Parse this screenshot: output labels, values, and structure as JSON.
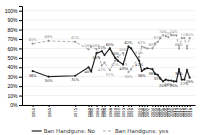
{
  "chart_data": {
    "type": "line",
    "title": "",
    "x": [
      1959,
      1965,
      1975,
      1980,
      1981,
      1983,
      1985,
      1986,
      1988,
      1990,
      1991,
      1993,
      1995,
      1996,
      1999,
      2000,
      2001,
      2002,
      2004,
      2005,
      2006,
      2007,
      2008,
      2009,
      2010,
      2011,
      2012,
      2013,
      2014,
      2015,
      2016,
      2017,
      2018
    ],
    "series": [
      {
        "name": "Ban Handguns: No",
        "color": "#222222",
        "line_style": "solid",
        "marker": "circle",
        "values": [
          36,
          30,
          31,
          40,
          36,
          55,
          57,
          53,
          60,
          50,
          47,
          43,
          62,
          60,
          47,
          36,
          38,
          39,
          38,
          33,
          32,
          28,
          25,
          27,
          26,
          26,
          25,
          25,
          38,
          27,
          27,
          37,
          29
        ],
        "value_labels": [
          "36%",
          "30%",
          "31%",
          "40%",
          null,
          "55%",
          "57%",
          null,
          "60%",
          "50%",
          null,
          "43%",
          "62%",
          null,
          "47%",
          "36%",
          null,
          null,
          "38%",
          null,
          "32%",
          null,
          "25%",
          null,
          "26%",
          null,
          "25%",
          null,
          "38%",
          null,
          "27%",
          null,
          "29%"
        ]
      },
      {
        "name": "Ban Handguns: yes",
        "color": "#999999",
        "line_style": "dashed",
        "marker": "circle",
        "values": [
          65,
          68,
          67,
          59,
          62,
          59,
          42,
          45,
          37,
          47,
          51,
          55,
          35,
          38,
          51,
          62,
          61,
          60,
          60,
          65,
          67,
          71,
          74,
          73,
          72,
          74,
          74,
          74,
          60,
          71,
          71,
          60,
          71
        ],
        "value_labels": [
          "65%",
          "68%",
          "67%",
          "59%",
          null,
          "59%",
          "42%",
          null,
          "37%",
          "47%",
          null,
          "55%",
          "35%",
          null,
          "51%",
          "62%",
          null,
          null,
          "60%",
          null,
          "67%",
          null,
          "74%",
          null,
          "72%",
          null,
          "74%",
          null,
          "60%",
          null,
          "71%",
          null,
          "71%"
        ]
      }
    ],
    "xlim": [
      1955,
      2020
    ],
    "xticks": [
      1959,
      1965,
      1975,
      1980,
      1981,
      1983,
      1985,
      1986,
      1988,
      1990,
      1991,
      1993,
      1995,
      1996,
      1999,
      2000,
      2001,
      2002,
      2004,
      2005,
      2006,
      2007,
      2008,
      2009,
      2010,
      2011,
      2012,
      2013,
      2014,
      2015,
      2016,
      2017,
      2018
    ],
    "ylim": [
      0,
      105
    ],
    "yticks": [
      {
        "value": 0,
        "label": "0%"
      },
      {
        "value": 10,
        "label": "10%"
      },
      {
        "value": 20,
        "label": "20%"
      },
      {
        "value": 30,
        "label": "30%"
      },
      {
        "value": 40,
        "label": "40%"
      },
      {
        "value": 50,
        "label": "50%"
      },
      {
        "value": 60,
        "label": "60%"
      },
      {
        "value": 70,
        "label": "70%"
      },
      {
        "value": 80,
        "label": "80%"
      },
      {
        "value": 90,
        "label": "90%"
      },
      {
        "value": 100,
        "label": "100%"
      }
    ],
    "grid": true,
    "legend": "bottom",
    "data_labels": true
  }
}
